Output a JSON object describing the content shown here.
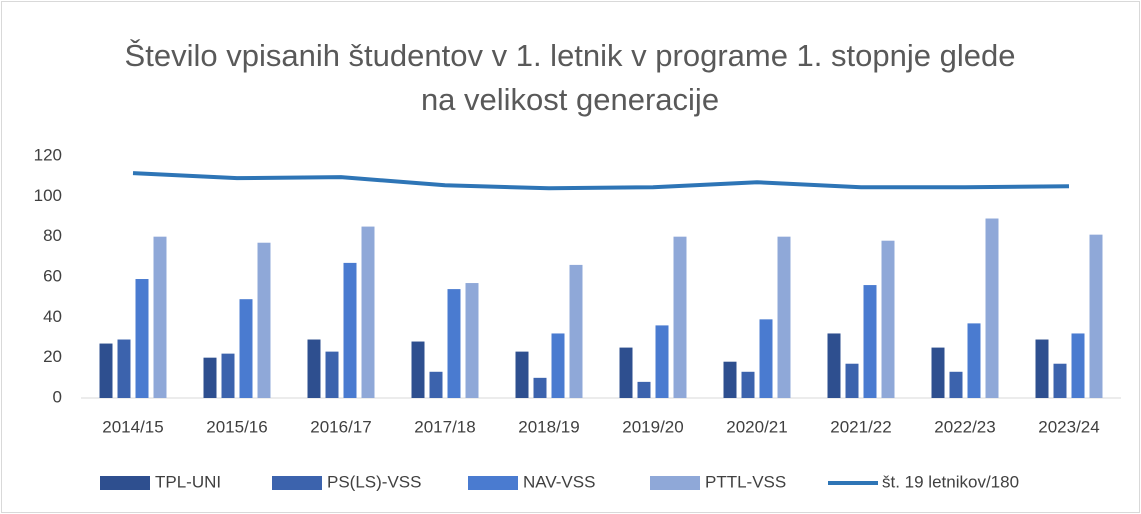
{
  "chart_data": {
    "type": "bar",
    "title": "Število vpisanih študentov v 1. letnik v programe 1. stopnje glede na velikost generacije",
    "categories": [
      "2014/15",
      "2015/16",
      "2016/17",
      "2017/18",
      "2018/19",
      "2019/20",
      "2020/21",
      "2021/22",
      "2022/23",
      "2023/24"
    ],
    "series": [
      {
        "name": "TPL-UNI",
        "color": "#2e4f8f",
        "values": [
          27,
          20,
          29,
          28,
          23,
          25,
          18,
          32,
          25,
          29
        ]
      },
      {
        "name": "PS(LS)-VSS",
        "color": "#3c63ad",
        "values": [
          29,
          22,
          23,
          13,
          10,
          8,
          13,
          17,
          13,
          17
        ]
      },
      {
        "name": "NAV-VSS",
        "color": "#4a7bd0",
        "values": [
          59,
          49,
          67,
          54,
          32,
          36,
          39,
          56,
          37,
          32
        ]
      },
      {
        "name": "PTTL-VSS",
        "color": "#8fa8d8",
        "values": [
          80,
          77,
          85,
          57,
          66,
          80,
          80,
          78,
          89,
          81
        ]
      },
      {
        "name": "št. 19 letnikov/180",
        "color": "#2e75b6",
        "type": "line",
        "values": [
          111.5,
          109,
          109.5,
          105.5,
          104,
          104.5,
          107,
          104.5,
          104.5,
          105
        ]
      }
    ],
    "ylim": [
      0,
      120
    ],
    "yticks": [
      0,
      20,
      40,
      60,
      80,
      100,
      120
    ],
    "legend": "bottom"
  }
}
